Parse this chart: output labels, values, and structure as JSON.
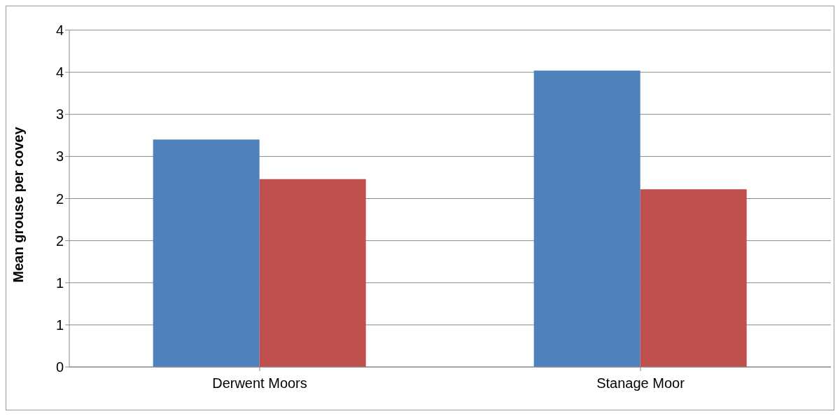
{
  "chart_data": {
    "type": "bar",
    "ylabel": "Mean grouse per covey",
    "categories": [
      "Derwent Moors",
      "Stanage Moor"
    ],
    "series": [
      {
        "color": "#4f81bd",
        "values": [
          2.7,
          3.52
        ]
      },
      {
        "color": "#c0504d",
        "values": [
          2.23,
          2.11
        ]
      }
    ],
    "ylim": [
      0,
      4
    ],
    "yticks": [
      0,
      {
        "value": 0.5,
        "label": "1"
      },
      1,
      {
        "value": 1.5,
        "label": "2"
      },
      2,
      {
        "value": 2.5,
        "label": "3"
      },
      3,
      {
        "value": 3.5,
        "label": "4"
      },
      4
    ],
    "grid": "y"
  }
}
